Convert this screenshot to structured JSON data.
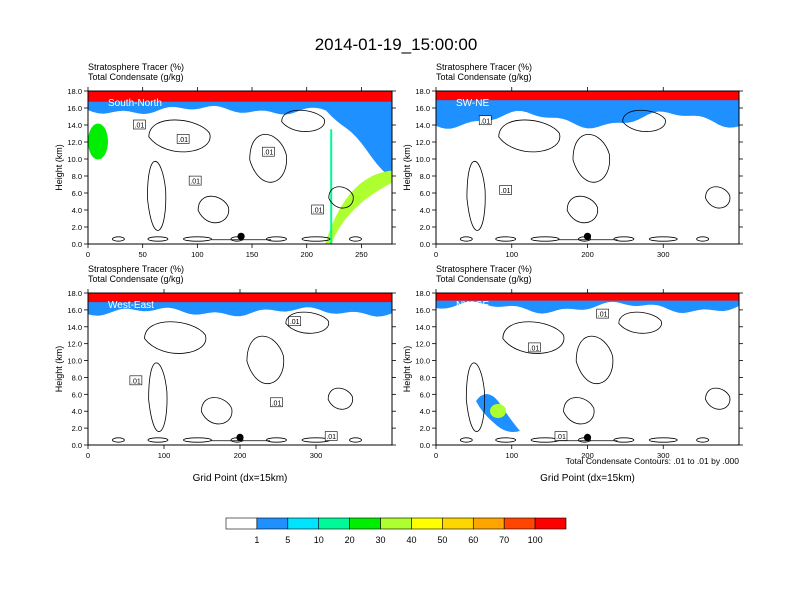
{
  "title": "2014-01-19_15:00:00",
  "contour_note": "Total Condensate Contours: .01 to .01 by .000",
  "colorbar": {
    "colors": [
      "#ffffff",
      "#1e90ff",
      "#00e5ff",
      "#00fa9a",
      "#00ee00",
      "#adff2f",
      "#ffff00",
      "#ffd700",
      "#ffa500",
      "#ff4500",
      "#ff0000"
    ],
    "labels": [
      "1",
      "5",
      "10",
      "20",
      "30",
      "40",
      "50",
      "60",
      "70",
      "100"
    ]
  },
  "chart_data": [
    {
      "type": "heatmap",
      "label": "South-North",
      "title_line1": "Stratosphere Tracer   (%)",
      "title_line2": "Total Condensate   (g/kg)",
      "ylabel": "Height (km)",
      "xlabel": "",
      "xlim": [
        0,
        278
      ],
      "ylim": [
        0,
        18
      ],
      "xticks": [
        "0",
        "50",
        "100",
        "150",
        "200",
        "250"
      ],
      "xtick_values": [
        0,
        50,
        100,
        150,
        200,
        250
      ],
      "yticks": [
        "0.0",
        "2.0",
        "4.0",
        "6.0",
        "8.0",
        "10.0",
        "12.0",
        "14.0",
        "16.0",
        "18.0"
      ],
      "marker_x": 140,
      "contour_labels": [
        {
          "x": 47,
          "y": 14.0,
          "text": ".01"
        },
        {
          "x": 87,
          "y": 12.3,
          "text": ".01"
        },
        {
          "x": 165,
          "y": 10.8,
          "text": ".01"
        },
        {
          "x": 98,
          "y": 7.4,
          "text": ".01"
        },
        {
          "x": 210,
          "y": 4.0,
          "text": ".01"
        }
      ]
    },
    {
      "type": "heatmap",
      "label": "SW-NE",
      "title_line1": "Stratosphere Tracer   (%)",
      "title_line2": "Total Condensate   (g/kg)",
      "ylabel": "Height (km)",
      "xlabel": "",
      "xlim": [
        0,
        400
      ],
      "ylim": [
        0,
        18
      ],
      "xticks": [
        "0",
        "100",
        "200",
        "300"
      ],
      "xtick_values": [
        0,
        100,
        200,
        300
      ],
      "yticks": [
        "0.0",
        "2.0",
        "4.0",
        "6.0",
        "8.0",
        "10.0",
        "12.0",
        "14.0",
        "16.0",
        "18.0"
      ],
      "marker_x": 200,
      "contour_labels": [
        {
          "x": 65,
          "y": 14.5,
          "text": ".01"
        },
        {
          "x": 92,
          "y": 6.3,
          "text": ".01"
        }
      ]
    },
    {
      "type": "heatmap",
      "label": "West-East",
      "title_line1": "Stratosphere Tracer   (%)",
      "title_line2": "Total Condensate   (g/kg)",
      "ylabel": "Height (km)",
      "xlabel": "Grid Point (dx=15km)",
      "xlim": [
        0,
        400
      ],
      "ylim": [
        0,
        18
      ],
      "xticks": [
        "0",
        "100",
        "200",
        "300"
      ],
      "xtick_values": [
        0,
        100,
        200,
        300
      ],
      "yticks": [
        "0.0",
        "2.0",
        "4.0",
        "6.0",
        "8.0",
        "10.0",
        "12.0",
        "14.0",
        "16.0",
        "18.0"
      ],
      "marker_x": 200,
      "contour_labels": [
        {
          "x": 63,
          "y": 7.6,
          "text": ".01"
        },
        {
          "x": 248,
          "y": 5.0,
          "text": ".01"
        },
        {
          "x": 272,
          "y": 14.6,
          "text": ".01"
        },
        {
          "x": 320,
          "y": 1.0,
          "text": ".01"
        }
      ]
    },
    {
      "type": "heatmap",
      "label": "NW-SE",
      "title_line1": "Stratosphere Tracer   (%)",
      "title_line2": "Total Condensate   (g/kg)",
      "ylabel": "Height (km)",
      "xlabel": "Grid Point (dx=15km)",
      "xlim": [
        0,
        400
      ],
      "ylim": [
        0,
        18
      ],
      "xticks": [
        "0",
        "100",
        "200",
        "300"
      ],
      "xtick_values": [
        0,
        100,
        200,
        300
      ],
      "yticks": [
        "0.0",
        "2.0",
        "4.0",
        "6.0",
        "8.0",
        "10.0",
        "12.0",
        "14.0",
        "16.0",
        "18.0"
      ],
      "marker_x": 200,
      "contour_labels": [
        {
          "x": 220,
          "y": 15.5,
          "text": ".01"
        },
        {
          "x": 130,
          "y": 11.5,
          "text": ".01"
        },
        {
          "x": 165,
          "y": 1.0,
          "text": ".01"
        }
      ]
    }
  ]
}
